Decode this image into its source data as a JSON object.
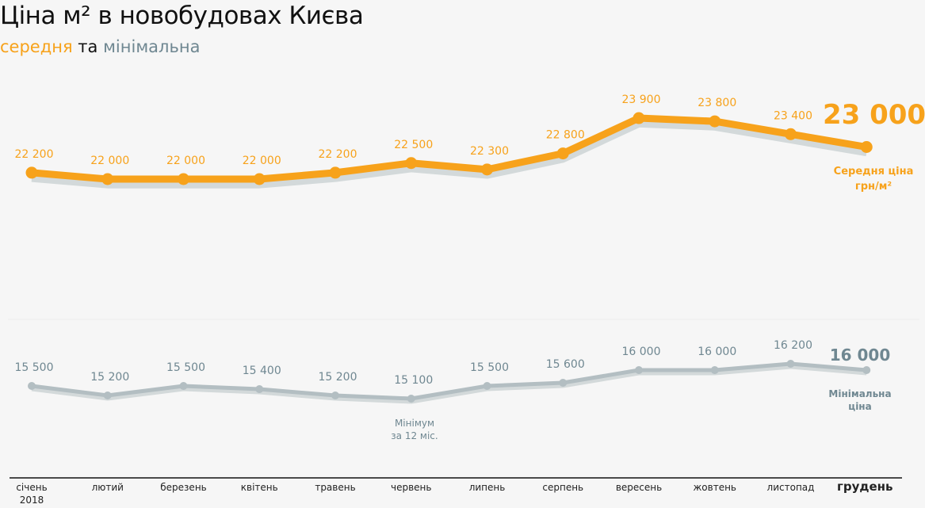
{
  "title": "Ціна м² в новобудовах Києва",
  "subtitle": {
    "avg": "середня",
    "and": "та",
    "min": "мінімальна"
  },
  "chart_data": {
    "type": "line",
    "categories": [
      "січень 2018",
      "лютий",
      "березень",
      "квітень",
      "травень",
      "червень",
      "липень",
      "серпень",
      "вересень",
      "жовтень",
      "листопад",
      "грудень"
    ],
    "series": [
      {
        "name": "Середня ціна грн/м²",
        "color": "#f7a21b",
        "values": [
          22200,
          22000,
          22000,
          22000,
          22200,
          22500,
          22300,
          22800,
          23900,
          23800,
          23400,
          23000
        ],
        "labels": [
          "22 200",
          "22 000",
          "22 000",
          "22 000",
          "22 200",
          "22 500",
          "22 300",
          "22 800",
          "23 900",
          "23 800",
          "23 400",
          "23 000"
        ]
      },
      {
        "name": "Мінімальна ціна",
        "color": "#b3bec2",
        "values": [
          15500,
          15200,
          15500,
          15400,
          15200,
          15100,
          15500,
          15600,
          16000,
          16000,
          16200,
          16000
        ],
        "labels": [
          "15 500",
          "15 200",
          "15 500",
          "15 400",
          "15 200",
          "15 100",
          "15 500",
          "15 600",
          "16 000",
          "16 000",
          "16 200",
          "16 000"
        ]
      }
    ],
    "annotations": {
      "avg_label": [
        "Середня ціна",
        "грн/м²"
      ],
      "min_label": [
        "Мінімальна",
        "ціна"
      ],
      "min_note": [
        "Мінімум",
        "за 12 міс."
      ]
    },
    "tick_labels": [
      [
        "січень",
        "2018"
      ],
      [
        "лютий"
      ],
      [
        "березень"
      ],
      [
        "квітень"
      ],
      [
        "травень"
      ],
      [
        "червень"
      ],
      [
        "липень"
      ],
      [
        "серпень"
      ],
      [
        "вересень"
      ],
      [
        "жовтень"
      ],
      [
        "листопад"
      ],
      [
        "грудень"
      ]
    ]
  }
}
